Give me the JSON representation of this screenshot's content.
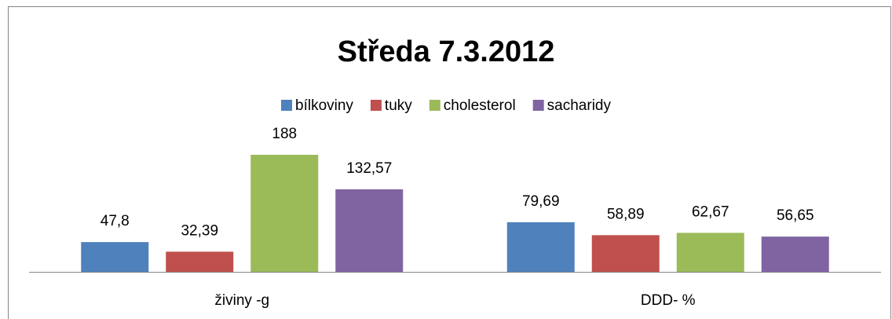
{
  "chart_data": {
    "type": "bar",
    "title": "Středa 7.3.2012",
    "categories": [
      "živiny -g",
      "DDD- %"
    ],
    "series": [
      {
        "name": "bílkoviny",
        "color": "#4f81bd",
        "values": [
          47.8,
          79.69
        ],
        "value_labels": [
          "47,8",
          "79,69"
        ]
      },
      {
        "name": "tuky",
        "color": "#c0504d",
        "values": [
          32.39,
          58.89
        ],
        "value_labels": [
          "32,39",
          "58,89"
        ]
      },
      {
        "name": "cholesterol",
        "color": "#9bbb59",
        "values": [
          188,
          62.67
        ],
        "value_labels": [
          "188",
          "62,67"
        ]
      },
      {
        "name": "sacharidy",
        "color": "#8064a2",
        "values": [
          132.57,
          56.65
        ],
        "value_labels": [
          "132,57",
          "56,65"
        ]
      }
    ],
    "legend": "top"
  }
}
